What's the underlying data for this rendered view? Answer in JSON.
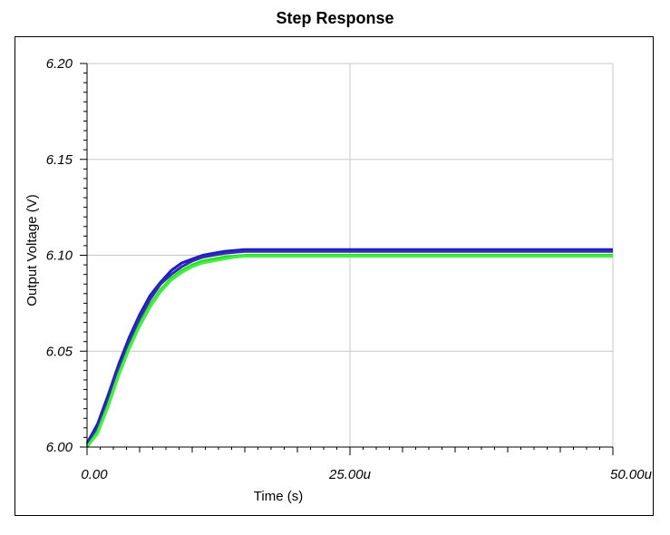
{
  "chart_data": {
    "type": "line",
    "title": "Step Response",
    "xlabel": "Time (s)",
    "ylabel": "Output Voltage (V)",
    "xlim": [
      0,
      50
    ],
    "ylim": [
      6.0,
      6.2
    ],
    "x_ticks": [
      {
        "value": 0,
        "label": "0.00"
      },
      {
        "value": 25,
        "label": "25.00u"
      },
      {
        "value": 50,
        "label": "50.00u"
      }
    ],
    "y_ticks": [
      {
        "value": 6.0,
        "label": "6.00"
      },
      {
        "value": 6.05,
        "label": "6.05"
      },
      {
        "value": 6.1,
        "label": "6.10"
      },
      {
        "value": 6.15,
        "label": "6.15"
      },
      {
        "value": 6.2,
        "label": "6.20"
      }
    ],
    "grid": true,
    "x_unit": "µs",
    "series": [
      {
        "color": "#1a1ad0",
        "x": [
          0,
          1,
          2,
          3,
          4,
          5,
          6,
          7,
          8,
          9,
          10,
          11,
          12,
          13,
          14,
          15,
          16,
          17,
          18,
          20,
          25,
          30,
          40,
          50
        ],
        "values": [
          6.002,
          6.012,
          6.027,
          6.043,
          6.057,
          6.069,
          6.079,
          6.086,
          6.092,
          6.096,
          6.098,
          6.1,
          6.101,
          6.102,
          6.1025,
          6.103,
          6.103,
          6.103,
          6.103,
          6.103,
          6.103,
          6.103,
          6.103,
          6.103
        ]
      },
      {
        "color": "#3030a0",
        "x": [
          0,
          1,
          2,
          3,
          4,
          5,
          6,
          7,
          8,
          9,
          10,
          11,
          12,
          13,
          14,
          15,
          16,
          17,
          18,
          20,
          25,
          30,
          40,
          50
        ],
        "values": [
          6.001,
          6.01,
          6.025,
          6.041,
          6.055,
          6.067,
          6.077,
          6.085,
          6.09,
          6.094,
          6.097,
          6.099,
          6.1,
          6.101,
          6.1015,
          6.102,
          6.102,
          6.102,
          6.102,
          6.102,
          6.102,
          6.102,
          6.102,
          6.102
        ]
      },
      {
        "color": "#22dd22",
        "x": [
          0,
          1,
          2,
          3,
          4,
          5,
          6,
          7,
          8,
          9,
          10,
          11,
          12,
          13,
          14,
          15,
          16,
          17,
          18,
          20,
          25,
          30,
          40,
          50
        ],
        "values": [
          6.0,
          6.008,
          6.022,
          6.038,
          6.052,
          6.064,
          6.074,
          6.082,
          6.088,
          6.092,
          6.095,
          6.097,
          6.098,
          6.099,
          6.0995,
          6.1,
          6.1,
          6.1,
          6.1,
          6.1,
          6.1,
          6.1,
          6.1,
          6.1
        ]
      },
      {
        "color": "#44ee44",
        "x": [
          0,
          1,
          2,
          3,
          4,
          5,
          6,
          7,
          8,
          9,
          10,
          11,
          12,
          13,
          14,
          15,
          16,
          17,
          18,
          20,
          25,
          30,
          40,
          50
        ],
        "values": [
          6.0,
          6.007,
          6.021,
          6.037,
          6.051,
          6.063,
          6.073,
          6.081,
          6.087,
          6.091,
          6.094,
          6.096,
          6.097,
          6.098,
          6.099,
          6.0995,
          6.0995,
          6.0995,
          6.0995,
          6.0995,
          6.0995,
          6.0995,
          6.0995,
          6.0995
        ]
      }
    ]
  }
}
